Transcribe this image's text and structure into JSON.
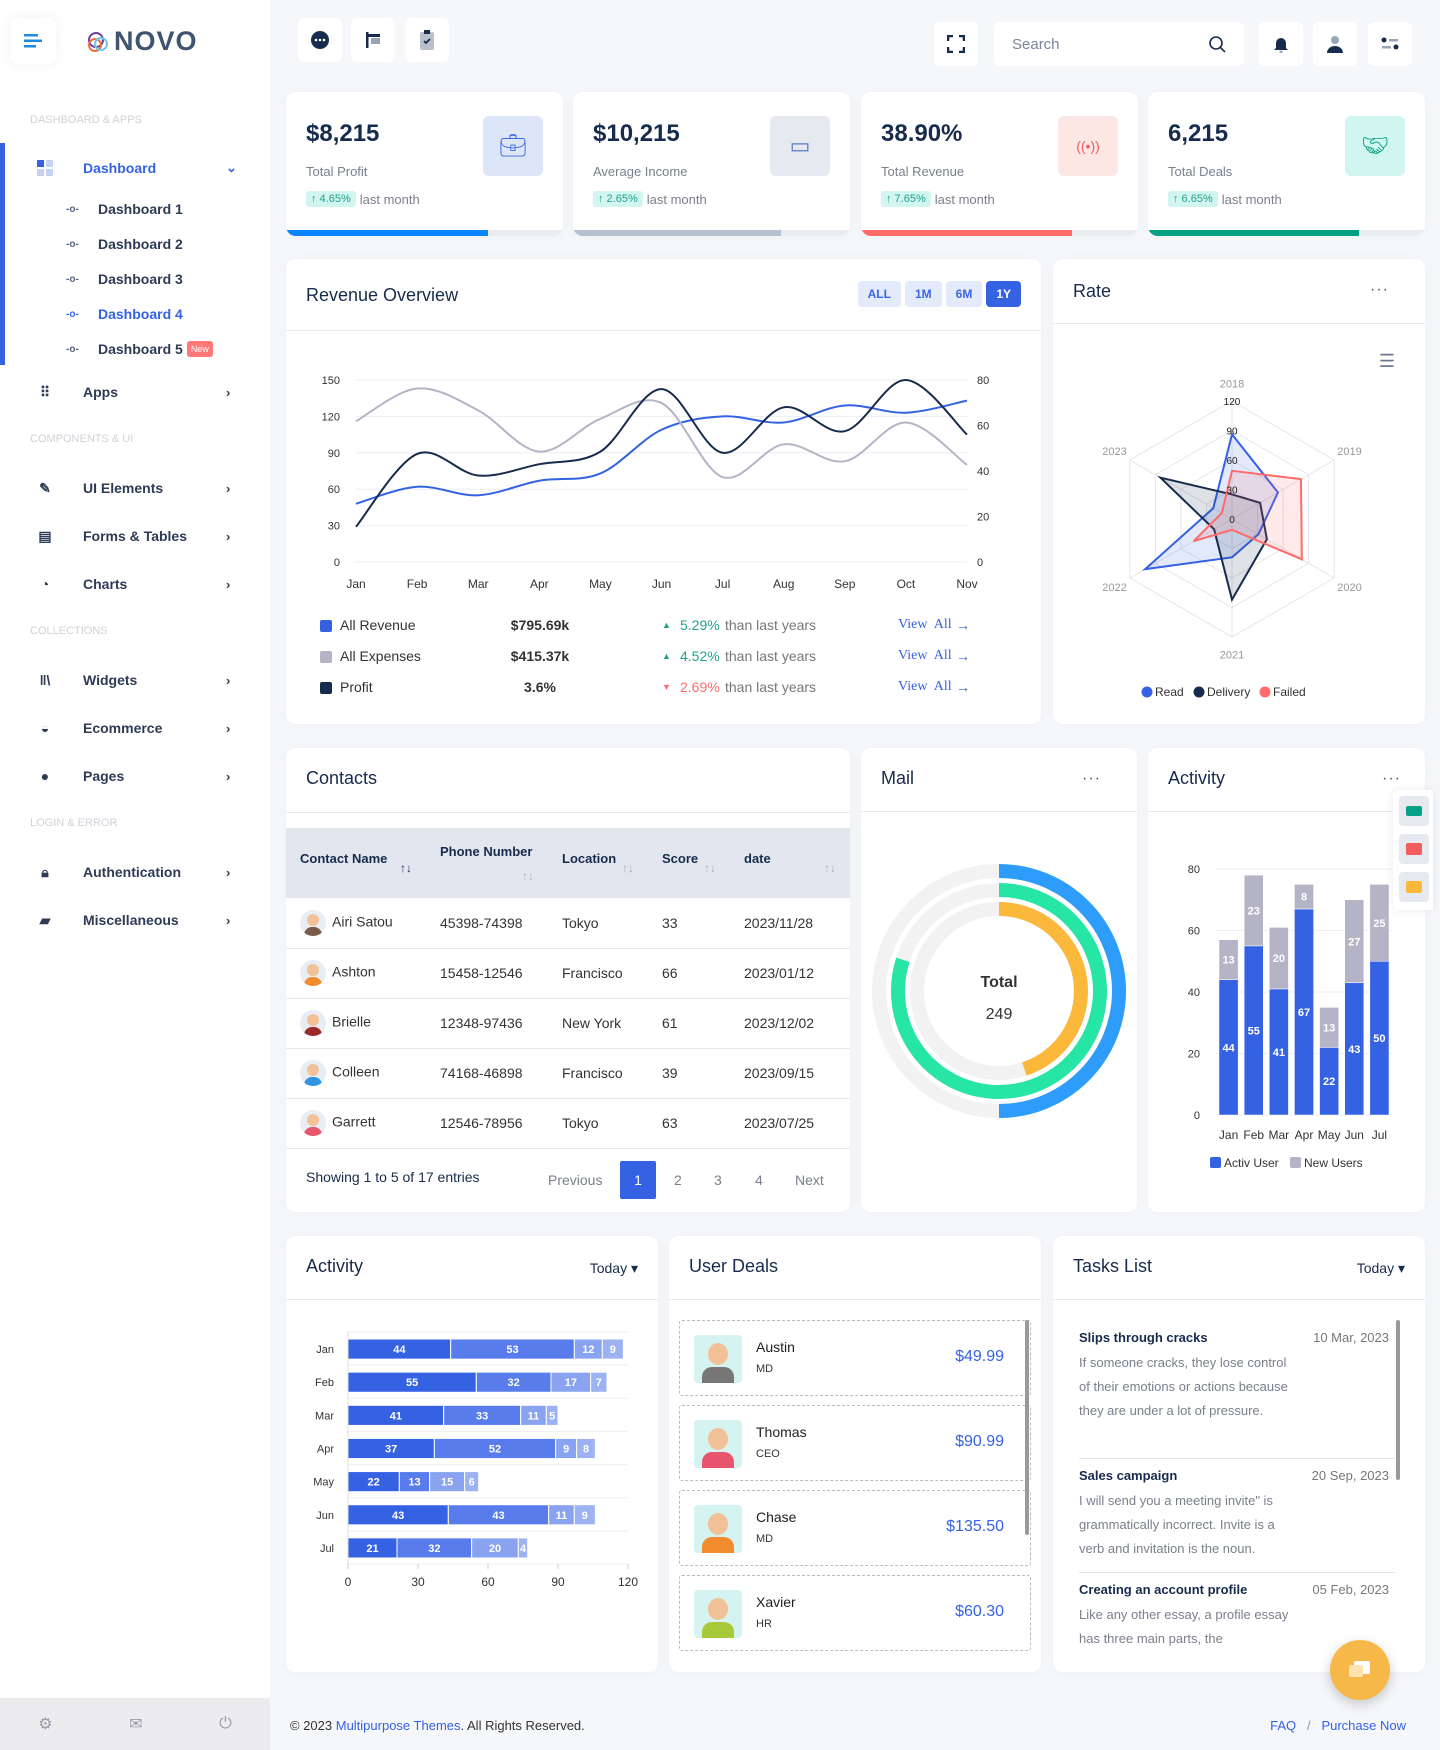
{
  "brand": {
    "name": "NOVO"
  },
  "sidebar": {
    "sections": [
      "DASHBOARD & APPS",
      "COMPONENTS & UI",
      "COLLECTIONS",
      "LOGIN & ERROR"
    ],
    "dashboard": {
      "label": "Dashboard",
      "children": [
        "Dashboard 1",
        "Dashboard 2",
        "Dashboard 3",
        "Dashboard 4",
        "Dashboard 5"
      ],
      "new_badge": "New"
    },
    "items": [
      {
        "label": "Apps",
        "icon": "grid-icon"
      },
      {
        "label": "UI Elements",
        "icon": "edit-icon"
      },
      {
        "label": "Forms & Tables",
        "icon": "document-icon"
      },
      {
        "label": "Charts",
        "icon": "pie-chart-icon"
      },
      {
        "label": "Widgets",
        "icon": "library-icon"
      },
      {
        "label": "Ecommerce",
        "icon": "basket-icon"
      },
      {
        "label": "Pages",
        "icon": "user-icon"
      },
      {
        "label": "Authentication",
        "icon": "lock-icon"
      },
      {
        "label": "Miscellaneous",
        "icon": "chat-icon"
      }
    ]
  },
  "topbar": {
    "search_placeholder": "Search"
  },
  "stats": [
    {
      "value": "$8,215",
      "label": "Total Profit",
      "change": "↑ 4.65%",
      "suffix": "last month",
      "progress": 0.73,
      "color": "#0a84ff",
      "icon_bg": "#dde6f8",
      "icon_color": "#3b66e5"
    },
    {
      "value": "$10,215",
      "label": "Average Income",
      "change": "↑ 2.65%",
      "suffix": "last month",
      "progress": 0.75,
      "color": "#b8c0cf",
      "icon_bg": "#e6e9ef",
      "icon_color": "#5b7bc5"
    },
    {
      "value": "38.90%",
      "label": "Total Revenue",
      "change": "↑ 7.65%",
      "suffix": "last month",
      "progress": 0.76,
      "color": "#ff6b6b",
      "icon_bg": "#fde7e5",
      "icon_color": "#f25c5c"
    },
    {
      "value": "6,215",
      "label": "Total Deals",
      "change": "↑ 6.65%",
      "suffix": "last month",
      "progress": 0.76,
      "color": "#05a085",
      "icon_bg": "#d1f5ef",
      "icon_color": "#05a085"
    }
  ],
  "revenue": {
    "title": "Revenue Overview",
    "periods": [
      "ALL",
      "1M",
      "6M",
      "1Y"
    ],
    "active_period": "1Y",
    "legend": [
      {
        "name": "All Revenue",
        "amount": "$795.69k",
        "pct": "5.29%",
        "trend": "up",
        "text": "than last years",
        "link": "View  All",
        "color": "#3562e3"
      },
      {
        "name": "All Expenses",
        "amount": "$415.37k",
        "pct": "4.52%",
        "trend": "up",
        "text": "than last years",
        "link": "View  All",
        "color": "#b5b4c6"
      },
      {
        "name": "Profit",
        "amount": "3.6%",
        "pct": "2.69%",
        "trend": "down",
        "text": "than last years",
        "link": "View  All",
        "color": "#172b4c"
      }
    ]
  },
  "rate": {
    "title": "Rate"
  },
  "contacts": {
    "title": "Contacts",
    "columns": [
      "Contact Name",
      "Phone Number",
      "Location",
      "Score",
      "date"
    ],
    "rows": [
      {
        "name": "Airi Satou",
        "phone": "45398-74398",
        "location": "Tokyo",
        "score": "33",
        "date": "2023/11/28",
        "shirt": "#7a5a4a"
      },
      {
        "name": "Ashton",
        "phone": "15458-12546",
        "location": "Francisco",
        "score": "66",
        "date": "2023/01/12",
        "shirt": "#f28b2d"
      },
      {
        "name": "Brielle",
        "phone": "12348-97436",
        "location": "New York",
        "score": "61",
        "date": "2023/12/02",
        "shirt": "#9b2a2a"
      },
      {
        "name": "Colleen",
        "phone": "74168-46898",
        "location": "Francisco",
        "score": "39",
        "date": "2023/09/15",
        "shirt": "#2f93e0"
      },
      {
        "name": "Garrett",
        "phone": "12546-78956",
        "location": "Tokyo",
        "score": "63",
        "date": "2023/07/25",
        "shirt": "#e8556d"
      }
    ],
    "summary": "Showing 1 to 5 of 17 entries",
    "pagination": {
      "previous": "Previous",
      "pages": [
        "1",
        "2",
        "3",
        "4"
      ],
      "current": "1",
      "next": "Next"
    }
  },
  "mail": {
    "title": "Mail",
    "center_label": "Total",
    "center_value": "249"
  },
  "activity_users": {
    "title": "Activity"
  },
  "activity_bottom": {
    "title": "Activity",
    "filter": "Today"
  },
  "deals": {
    "title": "User Deals",
    "items": [
      {
        "name": "Austin",
        "role": "MD",
        "price": "$49.99",
        "shirt": "#777"
      },
      {
        "name": "Thomas",
        "role": "CEO",
        "price": "$90.99",
        "shirt": "#e8556d"
      },
      {
        "name": "Chase",
        "role": "MD",
        "price": "$135.50",
        "shirt": "#f28b2d"
      },
      {
        "name": "Xavier",
        "role": "HR",
        "price": "$60.30",
        "shirt": "#a7c93a"
      }
    ]
  },
  "tasks": {
    "title": "Tasks List",
    "filter": "Today",
    "items": [
      {
        "title": "Slips through cracks",
        "date": "10 Mar, 2023",
        "text": "If someone cracks, they lose control of their emotions or actions because they are under a lot of pressure."
      },
      {
        "title": "Sales campaign",
        "date": "20 Sep, 2023",
        "text": "I will send you a meeting invite\" is grammatically incorrect. Invite is a verb and invitation is the noun."
      },
      {
        "title": "Creating an account profile",
        "date": "05 Feb, 2023",
        "text": "Like any other essay, a profile essay has three main parts, the"
      }
    ]
  },
  "footer": {
    "copyright_pre": "© 2023 ",
    "company": "Multipurpose Themes",
    "copyright_post": ". All Rights Reserved.",
    "faq": "FAQ",
    "sep": "/",
    "purchase": "Purchase Now"
  },
  "chart_data": [
    {
      "type": "line",
      "title": "Revenue Overview",
      "x": [
        "Jan",
        "Feb",
        "Mar",
        "Apr",
        "May",
        "Jun",
        "Jul",
        "Aug",
        "Sep",
        "Oct",
        "Nov"
      ],
      "ylim": [
        0,
        150
      ],
      "yticks": [
        0,
        30,
        60,
        90,
        120,
        150
      ],
      "y2lim": [
        0,
        80
      ],
      "y2ticks": [
        0,
        20,
        40,
        60,
        80
      ],
      "series": [
        {
          "name": "All Revenue",
          "axis": "left",
          "color": "#3562e3",
          "values": [
            48,
            62,
            55,
            67,
            73,
            109,
            120,
            115,
            129,
            123,
            133
          ]
        },
        {
          "name": "All Expenses",
          "axis": "left",
          "color": "#b5b4c6",
          "values": [
            116,
            143,
            125,
            91,
            118,
            131,
            70,
            97,
            83,
            115,
            80
          ]
        },
        {
          "name": "Profit",
          "axis": "right",
          "color": "#172b4c",
          "values": [
            15.5,
            47.5,
            38,
            43,
            48.5,
            76,
            48,
            68,
            57.5,
            80,
            56
          ]
        }
      ]
    },
    {
      "type": "radar",
      "title": "Rate",
      "axes": [
        "2018",
        "2019",
        "2020",
        "2021",
        "2022",
        "2023"
      ],
      "rlim": [
        0,
        120
      ],
      "rticks": [
        0,
        30,
        60,
        90,
        120
      ],
      "legend_position": "bottom",
      "series": [
        {
          "name": "Read",
          "color": "#3562e3",
          "values": [
            86,
            54,
            31,
            39,
            102,
            22
          ]
        },
        {
          "name": "Delivery",
          "color": "#172b4c",
          "values": [
            25,
            33,
            41,
            82,
            21,
            84
          ]
        },
        {
          "name": "Failed",
          "color": "#ff6b6b",
          "values": [
            49,
            81,
            82,
            11,
            45,
            12
          ]
        }
      ]
    },
    {
      "type": "radialBar",
      "title": "Mail",
      "total": 249,
      "series": [
        {
          "color": "#2d9cfb",
          "value": 50
        },
        {
          "color": "#26e5a5",
          "value": 80
        },
        {
          "color": "#fbb83b",
          "value": 45
        }
      ]
    },
    {
      "type": "bar",
      "stacked": true,
      "title": "Activity",
      "categories": [
        "Jan",
        "Feb",
        "Mar",
        "Apr",
        "May",
        "Jun",
        "Jul"
      ],
      "ylim": [
        0,
        80
      ],
      "yticks": [
        0,
        20,
        40,
        60,
        80
      ],
      "legend_position": "bottom",
      "series": [
        {
          "name": "Activ User",
          "color": "#3562e3",
          "values": [
            44,
            55,
            41,
            67,
            22,
            43,
            50
          ]
        },
        {
          "name": "New Users",
          "color": "#b5b4c6",
          "values": [
            13,
            23,
            20,
            8,
            13,
            27,
            25
          ]
        }
      ]
    },
    {
      "type": "bar",
      "orientation": "horizontal",
      "stacked": true,
      "title": "Activity",
      "categories": [
        "Jan",
        "Feb",
        "Mar",
        "Apr",
        "May",
        "Jun",
        "Jul"
      ],
      "xlim": [
        0,
        120
      ],
      "xticks": [
        0,
        30,
        60,
        90,
        120
      ],
      "series": [
        {
          "color": "#3562e3",
          "values": [
            44,
            55,
            41,
            37,
            22,
            43,
            21
          ]
        },
        {
          "color": "#587ceb",
          "values": [
            53,
            32,
            33,
            52,
            13,
            43,
            32
          ]
        },
        {
          "color": "#89a3f1",
          "values": [
            12,
            17,
            11,
            9,
            15,
            11,
            20
          ]
        },
        {
          "color": "#9cb2f3",
          "values": [
            9,
            7,
            5,
            8,
            6,
            9,
            4
          ]
        }
      ]
    }
  ]
}
